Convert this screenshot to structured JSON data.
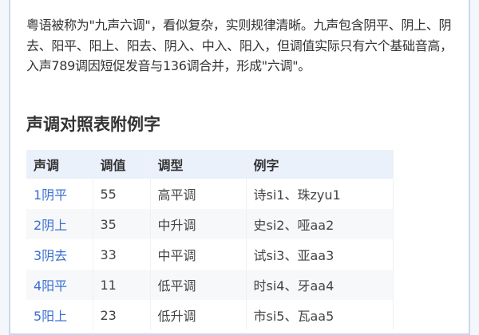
{
  "paragraph": "粤语被称为\"九声六调\"，看似复杂，实则规律清晰。九声包含阴平、阴上、阴去、阳平、阳上、阳去、阴入、中入、阳入，但调值实际只有六个基础音高，入声789调因短促发音与136调合并，形成\"六调\"。",
  "heading": "声调对照表附例字",
  "table": {
    "headers": [
      "声调",
      "调值",
      "调型",
      "例字"
    ],
    "rows": [
      [
        "1阴平",
        "55",
        "高平调",
        "诗si1、珠zyu1"
      ],
      [
        "2阴上",
        "35",
        "中升调",
        "史si2、哑aa2"
      ],
      [
        "3阴去",
        "33",
        "中平调",
        "试si3、亚aa3"
      ],
      [
        "4阳平",
        "11",
        "低平调",
        "时si4、牙aa4"
      ],
      [
        "5阳上",
        "23",
        "低升调",
        "市si5、瓦aa5"
      ]
    ]
  },
  "colors": {
    "tone_link": "#3a6fd1",
    "header_bg": "#eaf1fb",
    "frame_border": "#c9d8f0"
  }
}
